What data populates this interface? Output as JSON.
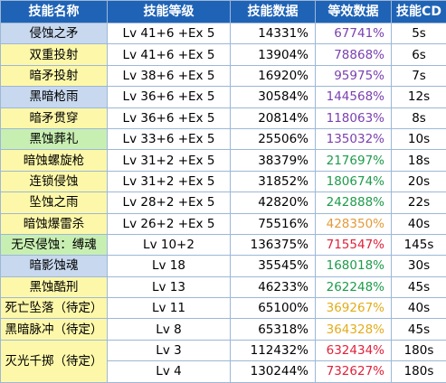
{
  "headers": {
    "name": "技能名称",
    "level": "技能等级",
    "skill": "技能数据",
    "equiv": "等效数据",
    "cd": "技能CD"
  },
  "colors": {
    "header_bg": "#1f63b6",
    "blue": "#c7d8ef",
    "yellow": "#fdf8a9",
    "green": "#c8efb2",
    "purple": "#7a3fb0",
    "teal_green": "#1e9b4b",
    "orange": "#e39a3a",
    "gold": "#e2ac1a",
    "red": "#e0223b"
  },
  "rows": [
    {
      "name": "侵蚀之矛",
      "level": "Lv 41+6 +Ex 5",
      "skill": "14331%",
      "equiv": "67741%",
      "cd": "5s"
    },
    {
      "name": "双重投射",
      "level": "Lv 41+6 +Ex 5",
      "skill": "13904%",
      "equiv": "78868%",
      "cd": "6s"
    },
    {
      "name": "暗矛投射",
      "level": "Lv 38+6 +Ex 5",
      "skill": "16920%",
      "equiv": "95975%",
      "cd": "7s"
    },
    {
      "name": "黑暗枪雨",
      "level": "Lv 36+6 +Ex 5",
      "skill": "30584%",
      "equiv": "144568%",
      "cd": "12s"
    },
    {
      "name": "暗矛贯穿",
      "level": "Lv 36+6 +Ex 5",
      "skill": "20814%",
      "equiv": "118063%",
      "cd": "8s"
    },
    {
      "name": "黑蚀葬礼",
      "level": "Lv 33+6 +Ex 5",
      "skill": "25506%",
      "equiv": "135032%",
      "cd": "10s"
    },
    {
      "name": "暗蚀螺旋枪",
      "level": "Lv 31+2 +Ex 5",
      "skill": "38379%",
      "equiv": "217697%",
      "cd": "18s"
    },
    {
      "name": "连锁侵蚀",
      "level": "Lv 31+2 +Ex 5",
      "skill": "31852%",
      "equiv": "180674%",
      "cd": "20s"
    },
    {
      "name": "坠蚀之雨",
      "level": "Lv 28+2 +Ex 5",
      "skill": "42820%",
      "equiv": "242888%",
      "cd": "22s"
    },
    {
      "name": "暗蚀爆雷杀",
      "level": "Lv 26+2 +Ex 5",
      "skill": "75516%",
      "equiv": "428350%",
      "cd": "40s"
    },
    {
      "name": "无尽侵蚀：缚魂",
      "level": "Lv 10+2",
      "skill": "136375%",
      "equiv": "715547%",
      "cd": "145s"
    },
    {
      "name": "暗影蚀魂",
      "level": "Lv 18",
      "skill": "35545%",
      "equiv": "168018%",
      "cd": "30s"
    },
    {
      "name": "黑蚀酷刑",
      "level": "Lv 13",
      "skill": "46233%",
      "equiv": "262248%",
      "cd": "45s"
    },
    {
      "name": "死亡坠落（待定）",
      "level": "Lv 11",
      "skill": "65100%",
      "equiv": "369267%",
      "cd": "40s"
    },
    {
      "name": "黑暗脉冲（待定）",
      "level": "Lv 8",
      "skill": "65318%",
      "equiv": "364328%",
      "cd": "45s"
    },
    {
      "name": "灭光千掷（待定）",
      "level": "Lv 3",
      "skill": "112432%",
      "equiv": "632434%",
      "cd": "180s"
    },
    {
      "level": "Lv 4",
      "skill": "130244%",
      "equiv": "732627%",
      "cd": "180s"
    }
  ]
}
